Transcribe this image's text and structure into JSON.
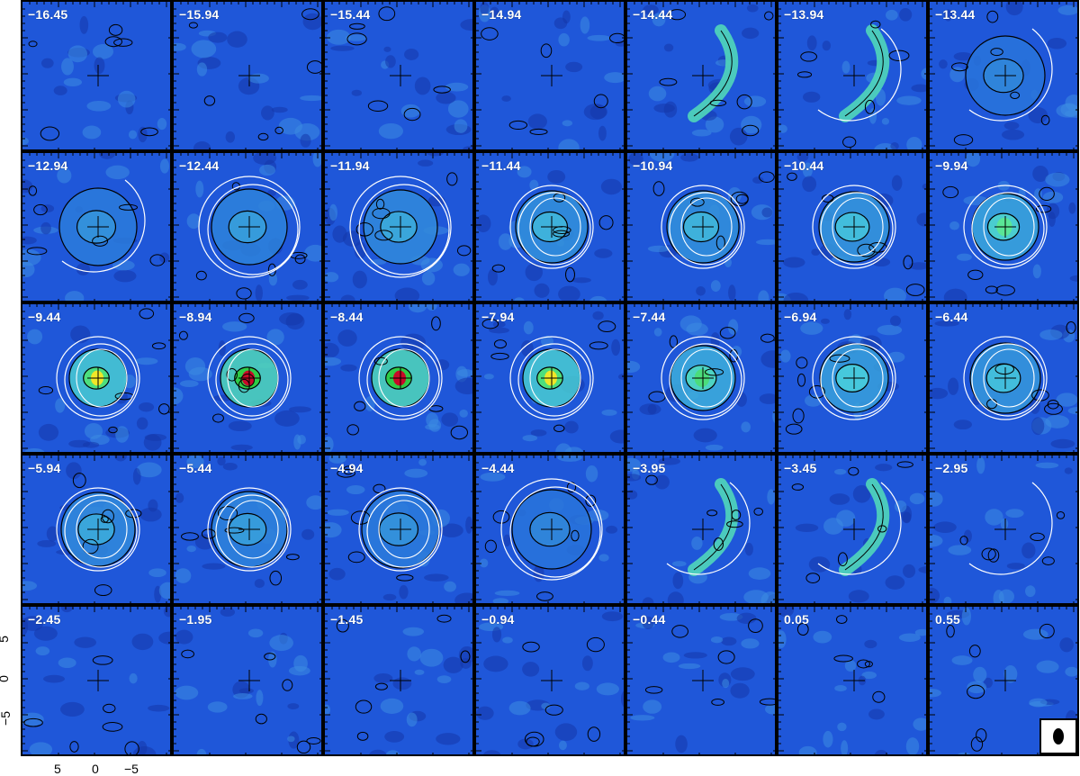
{
  "chart_data": {
    "type": "heatmap",
    "panel_labels": [
      "−16.45",
      "−15.94",
      "−15.44",
      "−14.94",
      "−14.44",
      "−13.94",
      "−13.44",
      "−12.94",
      "−12.44",
      "−11.94",
      "−11.44",
      "−10.94",
      "−10.44",
      "−9.94",
      "−9.44",
      "−8.94",
      "−8.44",
      "−7.94",
      "−7.44",
      "−6.94",
      "−6.44",
      "−5.94",
      "−5.44",
      "−4.94",
      "−4.44",
      "−3.95",
      "−3.45",
      "−2.95",
      "−2.45",
      "−1.95",
      "−1.45",
      "−0.94",
      "−0.44",
      "0.05",
      "0.55"
    ],
    "velocities": [
      -16.45,
      -15.94,
      -15.44,
      -14.94,
      -14.44,
      -13.94,
      -13.44,
      -12.94,
      -12.44,
      -11.94,
      -11.44,
      -10.94,
      -10.44,
      -9.94,
      -9.44,
      -8.94,
      -8.44,
      -7.94,
      -7.44,
      -6.94,
      -6.44,
      -5.94,
      -5.44,
      -4.94,
      -4.44,
      -3.95,
      -3.45,
      -2.95,
      -2.45,
      -1.95,
      -1.45,
      -0.94,
      -0.44,
      0.05,
      0.55
    ],
    "peak_intensity": [
      0.05,
      0.05,
      0.05,
      0.05,
      0.08,
      0.15,
      0.2,
      0.25,
      0.3,
      0.35,
      0.4,
      0.4,
      0.45,
      0.55,
      0.85,
      1.0,
      1.0,
      0.85,
      0.6,
      0.5,
      0.45,
      0.35,
      0.3,
      0.25,
      0.2,
      0.15,
      0.1,
      0.05,
      0.05,
      0.05,
      0.05,
      0.05,
      0.05,
      0.05,
      0.05
    ],
    "ring_model": [
      0,
      0,
      0,
      0,
      0,
      1,
      1,
      1,
      2,
      2,
      3,
      3,
      3,
      3,
      3,
      3,
      3,
      3,
      3,
      3,
      3,
      3,
      3,
      3,
      2,
      1,
      1,
      1,
      0,
      0,
      0,
      0,
      0,
      0,
      0
    ],
    "x_ticks": [
      "5",
      "0",
      "−5"
    ],
    "y_ticks": [
      "5",
      "0",
      "−5"
    ],
    "xlim": [
      8.5,
      -8.5
    ],
    "ylim": [
      -8.5,
      8.5
    ],
    "colormap": "blue-cyan-green-yellow-red",
    "background_color": "#1f57d9",
    "model_contour_color": "#ffffff",
    "data_contour_color": "#000000",
    "beam_marker": "ellipse"
  }
}
